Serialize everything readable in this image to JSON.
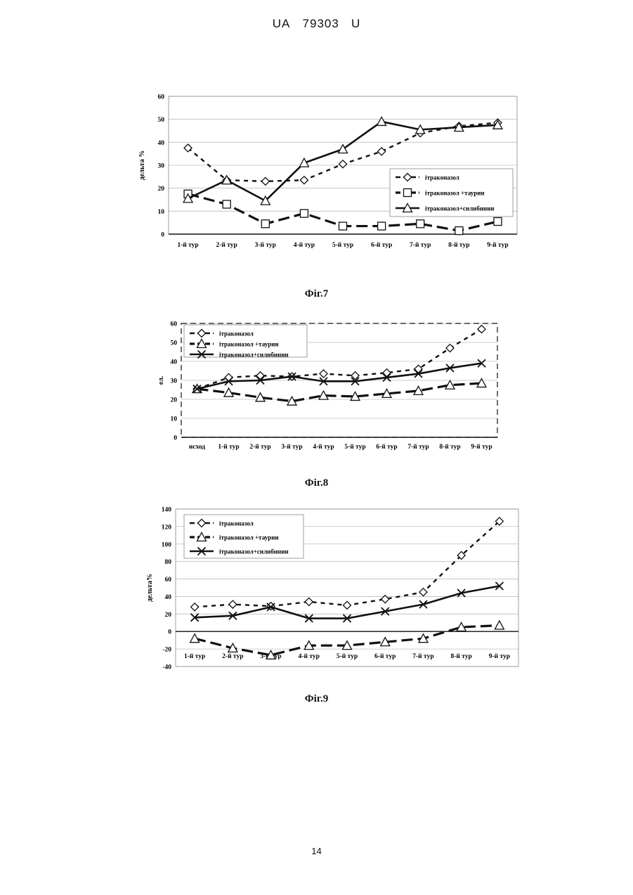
{
  "header": {
    "doc": "UA",
    "number": "79303",
    "kind": "U"
  },
  "page_number": "14",
  "figures": [
    "Фіг.7",
    "Фіг.8",
    "Фіг.9"
  ],
  "chart_data": [
    {
      "type": "line",
      "ylabel": "дельта %",
      "ylim": [
        0,
        60
      ],
      "yticks": [
        0,
        10,
        20,
        30,
        40,
        50,
        60
      ],
      "grid": true,
      "legend": "right-middle",
      "categories": [
        "1-й тур",
        "2-й тур",
        "3-й тур",
        "4-й тур",
        "5-й тур",
        "6-й тур",
        "7-й тур",
        "8-й тур",
        "9-й тур"
      ],
      "series": [
        {
          "name": "ітраконазол",
          "marker": "diamond",
          "dash": "dotted",
          "values": [
            37.5,
            23.5,
            23,
            23.5,
            30.5,
            36,
            44,
            47,
            48.5
          ]
        },
        {
          "name": "ітраконазол +таурин",
          "marker": "square",
          "dash": "dashed",
          "values": [
            17.5,
            13,
            4.5,
            9,
            3.5,
            3.5,
            4.5,
            1.5,
            5.5
          ]
        },
        {
          "name": "ітраконазол+силибинин",
          "marker": "triangle",
          "dash": "solid",
          "values": [
            15.5,
            23.5,
            14.5,
            31,
            37,
            49,
            45.5,
            46.5,
            47.5
          ]
        }
      ]
    },
    {
      "type": "line",
      "ylabel": "ел.",
      "ylim": [
        0,
        60
      ],
      "yticks": [
        0,
        10,
        20,
        30,
        40,
        50,
        60
      ],
      "grid": true,
      "legend": "top-left",
      "categories": [
        "исход",
        "1-й тур",
        "2-й тур",
        "3-й тур",
        "4-й тур",
        "5-й тур",
        "6-й тур",
        "7-й тур",
        "8-й тур",
        "9-й тур"
      ],
      "series": [
        {
          "name": "ітраконазол",
          "marker": "diamond",
          "dash": "dotted",
          "values": [
            25.5,
            31.5,
            32.5,
            32,
            33.5,
            32.5,
            34,
            36,
            47,
            57
          ]
        },
        {
          "name": "ітраконазол +таурин",
          "marker": "triangle",
          "dash": "dashed",
          "values": [
            25.5,
            23.5,
            21,
            19,
            22,
            21.5,
            23,
            24.5,
            27.5,
            28.5
          ]
        },
        {
          "name": "ітраконазол+силибинин",
          "marker": "x",
          "dash": "solid",
          "values": [
            25.5,
            29.5,
            30,
            32,
            29.5,
            29.5,
            31.5,
            33.5,
            36.5,
            39
          ]
        }
      ]
    },
    {
      "type": "line",
      "ylabel": "дельта%",
      "ylim": [
        -40,
        140
      ],
      "yticks": [
        -40,
        -20,
        0,
        20,
        40,
        60,
        80,
        100,
        120,
        140
      ],
      "grid": true,
      "legend": "top-left",
      "categories": [
        "1-й тур",
        "2-й тур",
        "3-й тур",
        "4-й тур",
        "5-й тур",
        "6-й тур",
        "7-й тур",
        "8-й тур",
        "9-й тур"
      ],
      "series": [
        {
          "name": "ітраконазол",
          "marker": "diamond",
          "dash": "dotted",
          "values": [
            28,
            31,
            29,
            34,
            30,
            37,
            45,
            87,
            126
          ]
        },
        {
          "name": "ітраконазол +таурин",
          "marker": "triangle",
          "dash": "dashed",
          "values": [
            -8,
            -19,
            -27,
            -16,
            -16,
            -12,
            -8,
            5,
            7
          ]
        },
        {
          "name": "ітраконазол+силибинин",
          "marker": "x",
          "dash": "solid",
          "values": [
            16,
            18,
            28,
            15,
            15,
            23,
            31,
            44,
            52
          ]
        }
      ]
    }
  ]
}
